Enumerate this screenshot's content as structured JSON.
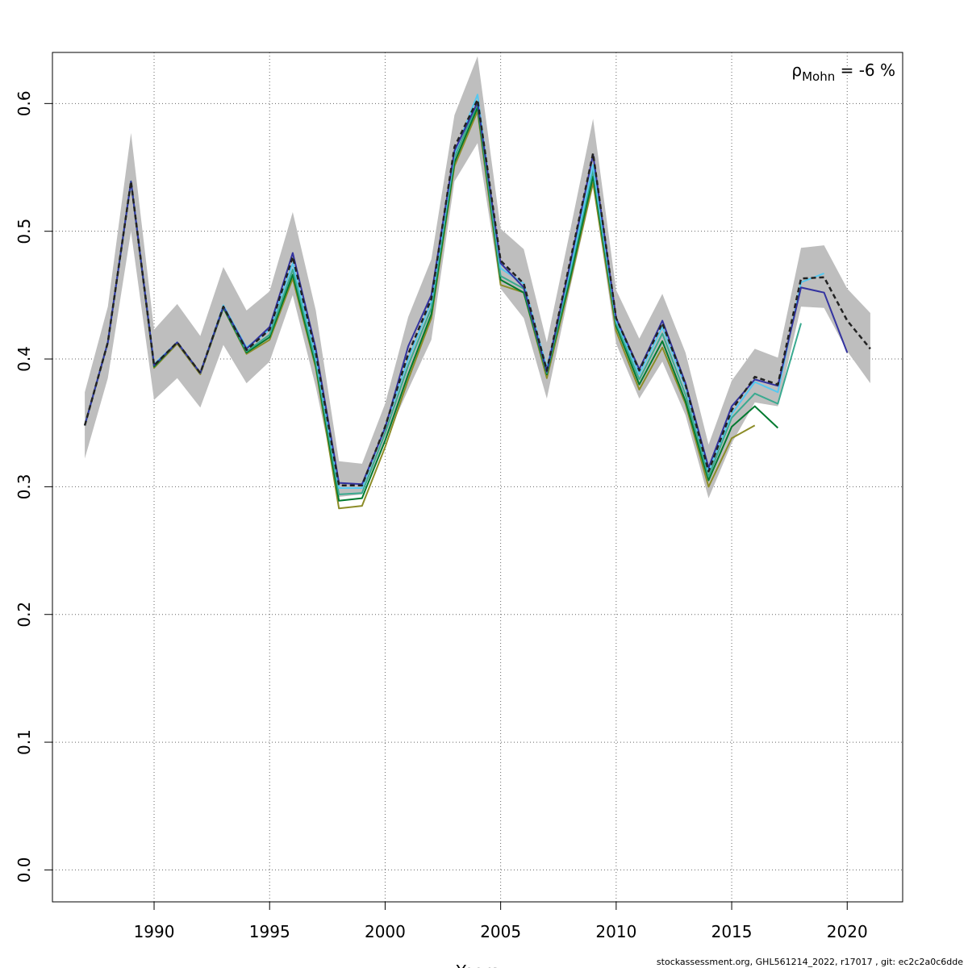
{
  "chart_data": {
    "type": "line",
    "title": "",
    "xlabel": "Years",
    "ylabel": "",
    "xlim": [
      1985.6,
      2022.4
    ],
    "ylim": [
      -0.025,
      0.64
    ],
    "x_ticks": [
      1990,
      1995,
      2000,
      2005,
      2010,
      2015,
      2020
    ],
    "y_ticks": [
      0.0,
      0.1,
      0.2,
      0.3,
      0.4,
      0.5,
      0.6
    ],
    "x_tick_labels": [
      "1990",
      "1995",
      "2000",
      "2005",
      "2010",
      "2015",
      "2020"
    ],
    "y_tick_labels": [
      "0.0",
      "0.1",
      "0.2",
      "0.3",
      "0.4",
      "0.5",
      "0.6"
    ],
    "grid": true,
    "annotation": {
      "rho": "ρ",
      "sub": "Mohn",
      "text": " = -6 %"
    },
    "confidence_band": {
      "color": "#bebebe",
      "x": [
        1987,
        1988,
        1989,
        1990,
        1991,
        1992,
        1993,
        1994,
        1995,
        1996,
        1997,
        1998,
        1999,
        2000,
        2001,
        2002,
        2003,
        2004,
        2005,
        2006,
        2007,
        2008,
        2009,
        2010,
        2011,
        2012,
        2013,
        2014,
        2015,
        2016,
        2017,
        2018,
        2019,
        2020,
        2021
      ],
      "lower": [
        0.322,
        0.385,
        0.5,
        0.368,
        0.385,
        0.362,
        0.411,
        0.381,
        0.398,
        0.45,
        0.378,
        0.292,
        0.294,
        0.336,
        0.376,
        0.415,
        0.539,
        0.569,
        0.455,
        0.432,
        0.369,
        0.455,
        0.535,
        0.412,
        0.369,
        0.398,
        0.356,
        0.291,
        0.334,
        0.366,
        0.363,
        0.441,
        0.44,
        0.406,
        0.381
      ],
      "upper": [
        0.374,
        0.441,
        0.577,
        0.423,
        0.443,
        0.418,
        0.472,
        0.438,
        0.453,
        0.515,
        0.438,
        0.32,
        0.318,
        0.365,
        0.433,
        0.478,
        0.591,
        0.637,
        0.502,
        0.486,
        0.413,
        0.5,
        0.588,
        0.454,
        0.416,
        0.451,
        0.405,
        0.333,
        0.383,
        0.408,
        0.401,
        0.487,
        0.489,
        0.455,
        0.436
      ]
    },
    "series": [
      {
        "color": "#222222",
        "dashed": true,
        "width": 2.5,
        "x": [
          1987,
          1988,
          1989,
          1990,
          1991,
          1992,
          1993,
          1994,
          1995,
          1996,
          1997,
          1998,
          1999,
          2000,
          2001,
          2002,
          2003,
          2004,
          2005,
          2006,
          2007,
          2008,
          2009,
          2010,
          2011,
          2012,
          2013,
          2014,
          2015,
          2016,
          2017,
          2018,
          2019,
          2020,
          2021
        ],
        "values": [
          0.348,
          0.413,
          0.539,
          0.395,
          0.413,
          0.389,
          0.441,
          0.407,
          0.423,
          0.48,
          0.405,
          0.301,
          0.301,
          0.347,
          0.404,
          0.447,
          0.566,
          0.603,
          0.477,
          0.459,
          0.391,
          0.476,
          0.561,
          0.432,
          0.391,
          0.428,
          0.38,
          0.312,
          0.36,
          0.386,
          0.38,
          0.463,
          0.464,
          0.43,
          0.408
        ]
      },
      {
        "color": "#3333a0",
        "dashed": false,
        "width": 2,
        "x": [
          1987,
          1988,
          1989,
          1990,
          1991,
          1992,
          1993,
          1994,
          1995,
          1996,
          1997,
          1998,
          1999,
          2000,
          2001,
          2002,
          2003,
          2004,
          2005,
          2006,
          2007,
          2008,
          2009,
          2010,
          2011,
          2012,
          2013,
          2014,
          2015,
          2016,
          2017,
          2018,
          2019,
          2020
        ],
        "values": [
          0.348,
          0.413,
          0.539,
          0.395,
          0.413,
          0.389,
          0.441,
          0.408,
          0.425,
          0.483,
          0.408,
          0.303,
          0.302,
          0.346,
          0.41,
          0.45,
          0.563,
          0.601,
          0.475,
          0.456,
          0.39,
          0.474,
          0.56,
          0.432,
          0.392,
          0.43,
          0.381,
          0.315,
          0.363,
          0.384,
          0.379,
          0.456,
          0.452,
          0.405
        ]
      },
      {
        "color": "#55c8f0",
        "dashed": false,
        "width": 2,
        "x": [
          1987,
          1988,
          1989,
          1990,
          1991,
          1992,
          1993,
          1994,
          1995,
          1996,
          1997,
          1998,
          1999,
          2000,
          2001,
          2002,
          2003,
          2004,
          2005,
          2006,
          2007,
          2008,
          2009,
          2010,
          2011,
          2012,
          2013,
          2014,
          2015,
          2016,
          2017,
          2018,
          2019
        ],
        "values": [
          0.348,
          0.413,
          0.539,
          0.396,
          0.413,
          0.389,
          0.442,
          0.409,
          0.423,
          0.475,
          0.402,
          0.299,
          0.299,
          0.347,
          0.4,
          0.445,
          0.561,
          0.607,
          0.471,
          0.459,
          0.393,
          0.47,
          0.552,
          0.43,
          0.388,
          0.425,
          0.378,
          0.312,
          0.357,
          0.382,
          0.374,
          0.46,
          0.467
        ]
      },
      {
        "color": "#3aaa90",
        "dashed": false,
        "width": 2,
        "x": [
          1987,
          1988,
          1989,
          1990,
          1991,
          1992,
          1993,
          1994,
          1995,
          1996,
          1997,
          1998,
          1999,
          2000,
          2001,
          2002,
          2003,
          2004,
          2005,
          2006,
          2007,
          2008,
          2009,
          2010,
          2011,
          2012,
          2013,
          2014,
          2015,
          2016,
          2017,
          2018
        ],
        "values": [
          0.348,
          0.413,
          0.539,
          0.395,
          0.413,
          0.389,
          0.441,
          0.406,
          0.419,
          0.47,
          0.398,
          0.294,
          0.295,
          0.342,
          0.395,
          0.44,
          0.558,
          0.6,
          0.465,
          0.455,
          0.389,
          0.467,
          0.548,
          0.428,
          0.384,
          0.42,
          0.372,
          0.308,
          0.354,
          0.373,
          0.365,
          0.428
        ]
      },
      {
        "color": "#007a30",
        "dashed": false,
        "width": 2,
        "x": [
          1987,
          1988,
          1989,
          1990,
          1991,
          1992,
          1993,
          1994,
          1995,
          1996,
          1997,
          1998,
          1999,
          2000,
          2001,
          2002,
          2003,
          2004,
          2005,
          2006,
          2007,
          2008,
          2009,
          2010,
          2011,
          2012,
          2013,
          2014,
          2015,
          2016,
          2017
        ],
        "values": [
          0.348,
          0.413,
          0.539,
          0.394,
          0.413,
          0.389,
          0.44,
          0.405,
          0.417,
          0.466,
          0.395,
          0.289,
          0.291,
          0.336,
          0.388,
          0.435,
          0.554,
          0.597,
          0.462,
          0.452,
          0.388,
          0.463,
          0.543,
          0.426,
          0.38,
          0.414,
          0.367,
          0.305,
          0.347,
          0.363,
          0.346
        ]
      },
      {
        "color": "#8c8c28",
        "dashed": false,
        "width": 2,
        "x": [
          1987,
          1988,
          1989,
          1990,
          1991,
          1992,
          1993,
          1994,
          1995,
          1996,
          1997,
          1998,
          1999,
          2000,
          2001,
          2002,
          2003,
          2004,
          2005,
          2006,
          2007,
          2008,
          2009,
          2010,
          2011,
          2012,
          2013,
          2014,
          2015,
          2016
        ],
        "values": [
          0.348,
          0.413,
          0.539,
          0.393,
          0.412,
          0.388,
          0.44,
          0.404,
          0.415,
          0.463,
          0.393,
          0.283,
          0.285,
          0.331,
          0.384,
          0.432,
          0.551,
          0.594,
          0.458,
          0.452,
          0.385,
          0.46,
          0.538,
          0.422,
          0.376,
          0.409,
          0.365,
          0.3,
          0.338,
          0.348
        ]
      }
    ]
  },
  "footer_text": "stockassessment.org, GHL561214_2022, r17017 , git: ec2c2a0c6dde"
}
